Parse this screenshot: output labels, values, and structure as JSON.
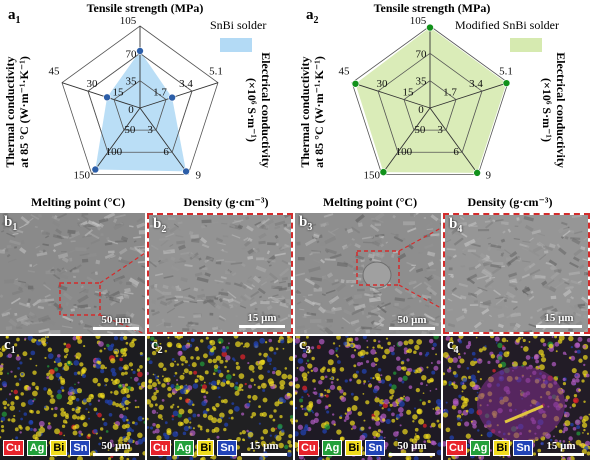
{
  "chart_data": [
    {
      "type": "radar",
      "panel_label": "a",
      "panel_index": "1",
      "axes": [
        {
          "name": "Tensile strength (MPa)",
          "ticks": [
            "0",
            "35",
            "70",
            "105"
          ],
          "max": 105
        },
        {
          "name": "Electrical conductivity (×10⁶ S·m⁻¹)",
          "ticks": [
            "0",
            "1.7",
            "3.4",
            "5.1"
          ],
          "max": 5.1
        },
        {
          "name": "Density (g·cm⁻³)",
          "ticks": [
            "0",
            "3",
            "6",
            "9"
          ],
          "max": 9
        },
        {
          "name": "Melting point (°C)",
          "ticks": [
            "0",
            "50",
            "100",
            "150"
          ],
          "max": 150
        },
        {
          "name": "Thermal conductivity at 85 °C (W·m⁻¹·K⁻¹)",
          "ticks": [
            "0",
            "15",
            "30",
            "45"
          ],
          "max": 45
        }
      ],
      "series": [
        {
          "name": "SnBi solder",
          "values": [
            73,
            2.1,
            8.6,
            139,
            19
          ]
        }
      ],
      "legend_position": "top-right"
    },
    {
      "type": "radar",
      "panel_label": "a",
      "panel_index": "2",
      "axes": [
        {
          "name": "Tensile strength (MPa)",
          "ticks": [
            "0",
            "35",
            "70",
            "105"
          ],
          "max": 105
        },
        {
          "name": "Electrical conductivity (×10⁶ S·m⁻¹)",
          "ticks": [
            "0",
            "1.7",
            "3.4",
            "5.1"
          ],
          "max": 5.1
        },
        {
          "name": "Density (g·cm⁻³)",
          "ticks": [
            "0",
            "3",
            "6",
            "9"
          ],
          "max": 9
        },
        {
          "name": "Melting point (°C)",
          "ticks": [
            "0",
            "50",
            "100",
            "150"
          ],
          "max": 150
        },
        {
          "name": "Thermal conductivity at 85 °C (W·m⁻¹·K⁻¹)",
          "ticks": [
            "0",
            "15",
            "30",
            "45"
          ],
          "max": 45
        }
      ],
      "series": [
        {
          "name": "Modified SnBi solder",
          "values": [
            103,
            5.0,
            8.8,
            145,
            43
          ]
        }
      ],
      "legend_position": "top-right"
    }
  ],
  "radar_labels": {
    "tensile": "Tensile strength (MPa)",
    "thermal_line1": "Thermal conductivity",
    "thermal_line2": "at 85 °C (W·m⁻¹·K⁻¹)",
    "electrical_line1": "Electrical conductivity",
    "electrical_line2": "(×10⁶ S·m⁻¹)",
    "melting": "Melting point (°C)",
    "density": "Density (g·cm⁻³)"
  },
  "colors": {
    "snbi_fill": "#b3daf5",
    "snbi_marker": "#2c5ea8",
    "modified_fill": "#d6eab0",
    "modified_marker": "#11911a",
    "dashed_border": "#d42b2b",
    "sem_gray": "#8a8a8a",
    "eds_cu": "#e8232b",
    "eds_ag": "#23a03a",
    "eds_bi": "#f0dc1e",
    "eds_sn": "#2244b8"
  },
  "panels": {
    "b": [
      {
        "label": "b",
        "index": "1",
        "scale": "50 μm"
      },
      {
        "label": "b",
        "index": "2",
        "scale": "15 μm"
      },
      {
        "label": "b",
        "index": "3",
        "scale": "50 μm"
      },
      {
        "label": "b",
        "index": "4",
        "scale": "15 μm"
      }
    ],
    "c": [
      {
        "label": "c",
        "index": "1",
        "scale": "50 μm"
      },
      {
        "label": "c",
        "index": "2",
        "scale": "15 μm"
      },
      {
        "label": "c",
        "index": "3",
        "scale": "50 μm"
      },
      {
        "label": "c",
        "index": "4",
        "scale": "15 μm"
      }
    ]
  },
  "eds_legend": [
    "Cu",
    "Ag",
    "Bi",
    "Sn"
  ]
}
